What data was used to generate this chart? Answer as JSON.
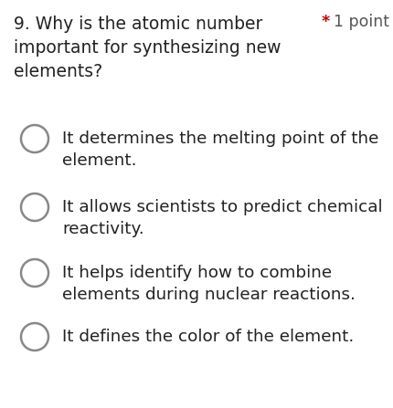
{
  "question_number": "9.",
  "question_text": "Why is the atomic number\nimportant for synthesizing new\nelements?",
  "star_color": "#cc0000",
  "point_text": "1 point",
  "point_color": "#555555",
  "options": [
    "It determines the melting point of the\nelement.",
    "It allows scientists to predict chemical\nreactivity.",
    "It helps identify how to combine\nelements during nuclear reactions.",
    "It defines the color of the element."
  ],
  "background_color": "#ffffff",
  "text_color": "#222222",
  "circle_edge_color": "#888888",
  "question_fontsize": 13.5,
  "option_fontsize": 13.2,
  "point_fontsize": 12.5
}
